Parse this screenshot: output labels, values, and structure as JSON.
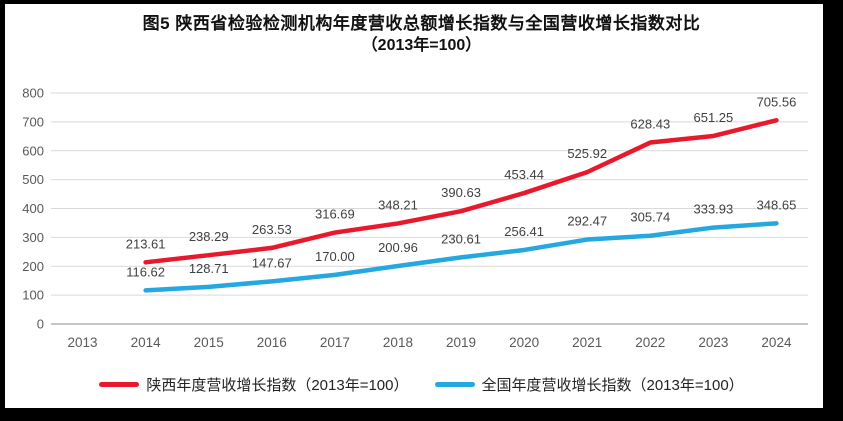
{
  "title": {
    "line1": "图5  陕西省检验检测机构年度营收总额增长指数与全国营收增长指数对比",
    "line2": "（2013年=100）"
  },
  "chart_data": {
    "type": "line",
    "title": "图5 陕西省检验检测机构年度营收总额增长指数与全国营收增长指数对比（2013年=100）",
    "categories": [
      "2013",
      "2014",
      "2015",
      "2016",
      "2017",
      "2018",
      "2019",
      "2020",
      "2021",
      "2022",
      "2023",
      "2024"
    ],
    "series": [
      {
        "name": "陕西年度营收增长指数（2013年=100）",
        "color": "#e8192c",
        "values": [
          null,
          213.61,
          238.29,
          263.53,
          316.69,
          348.21,
          390.63,
          453.44,
          525.92,
          628.43,
          651.25,
          705.56
        ],
        "labels": [
          "",
          "213.61",
          "238.29",
          "263.53",
          "316.69",
          "348.21",
          "390.63",
          "453.44",
          "525.92",
          "628.43",
          "651.25",
          "705.56"
        ]
      },
      {
        "name": "全国年度营收增长指数（2013年=100）",
        "color": "#25a8e0",
        "values": [
          null,
          116.62,
          128.71,
          147.67,
          170.0,
          200.96,
          230.61,
          256.41,
          292.47,
          305.74,
          333.93,
          348.65
        ],
        "labels": [
          "",
          "116.62",
          "128.71",
          "147.67",
          "170.00",
          "200.96",
          "230.61",
          "256.41",
          "292.47",
          "305.74",
          "333.93",
          "348.65"
        ]
      }
    ],
    "xlabel": "",
    "ylabel": "",
    "ylim": [
      0,
      800
    ],
    "yticks": [
      0,
      100,
      200,
      300,
      400,
      500,
      600,
      700,
      800
    ],
    "grid": true,
    "legend_position": "bottom"
  },
  "style": {
    "gridline_color": "#d9d9d9",
    "axis_line_color": "#8c8c8c",
    "tick_label_color": "#595959",
    "data_label_color": "#404040",
    "frame_color": "#000000"
  }
}
